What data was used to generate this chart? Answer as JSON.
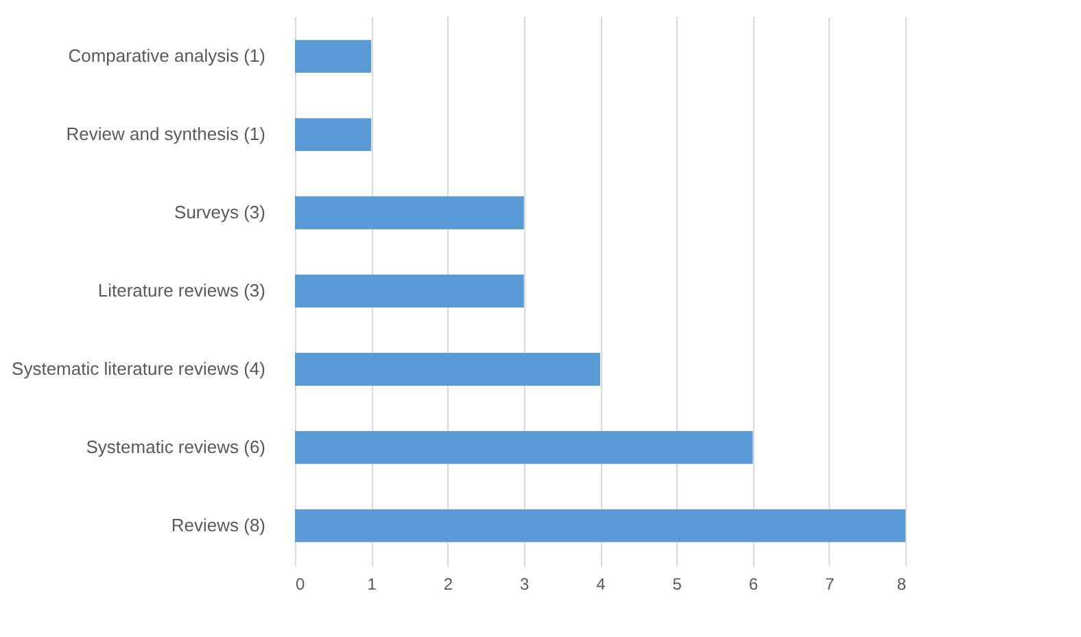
{
  "chart_data": {
    "type": "bar",
    "orientation": "horizontal",
    "categories": [
      "Comparative analysis (1)",
      "Review and synthesis (1)",
      "Surveys (3)",
      "Literature reviews (3)",
      "Systematic literature reviews (4)",
      "Systematic reviews (6)",
      "Reviews (8)"
    ],
    "values": [
      1,
      1,
      3,
      3,
      4,
      6,
      8
    ],
    "color": "#5b9bd5",
    "xlim": [
      0,
      8
    ],
    "xticks": [
      0,
      1,
      2,
      3,
      4,
      5,
      6,
      7,
      8
    ],
    "grid": "x"
  }
}
